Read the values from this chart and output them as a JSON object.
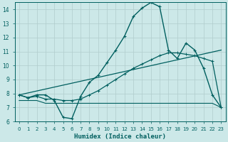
{
  "xlabel": "Humidex (Indice chaleur)",
  "xlim": [
    -0.5,
    23.5
  ],
  "ylim": [
    6,
    14.5
  ],
  "yticks": [
    6,
    7,
    8,
    9,
    10,
    11,
    12,
    13,
    14
  ],
  "xticks": [
    0,
    1,
    2,
    3,
    4,
    5,
    6,
    7,
    8,
    9,
    10,
    11,
    12,
    13,
    14,
    15,
    16,
    17,
    18,
    19,
    20,
    21,
    22,
    23
  ],
  "bg_color": "#cce8e8",
  "line_color": "#005f5f",
  "grid_color": "#b0cccc",
  "line1_x": [
    0,
    1,
    2,
    3,
    4,
    5,
    6,
    7,
    8,
    9,
    10,
    11,
    12,
    13,
    14,
    15,
    16,
    17,
    18,
    19,
    20,
    21,
    22,
    23
  ],
  "line1_y": [
    7.9,
    7.7,
    7.9,
    7.9,
    7.5,
    6.3,
    6.2,
    7.8,
    8.8,
    9.3,
    10.2,
    11.1,
    12.1,
    13.5,
    14.1,
    14.5,
    14.2,
    11.1,
    10.5,
    11.6,
    11.1,
    9.8,
    7.9,
    7.0
  ],
  "line2_x": [
    0,
    23
  ],
  "line2_y": [
    7.9,
    11.1
  ],
  "line3_x": [
    0,
    1,
    2,
    3,
    4,
    5,
    6,
    7,
    8,
    9,
    10,
    11,
    12,
    13,
    14,
    15,
    16,
    17,
    18,
    19,
    20,
    21,
    22,
    23
  ],
  "line3_y": [
    7.9,
    7.7,
    7.8,
    7.6,
    7.6,
    7.5,
    7.5,
    7.6,
    7.9,
    8.2,
    8.6,
    9.0,
    9.4,
    9.8,
    10.1,
    10.4,
    10.7,
    10.9,
    10.9,
    10.8,
    10.7,
    10.5,
    10.3,
    7.0
  ],
  "line4_x": [
    0,
    1,
    2,
    3,
    4,
    5,
    6,
    7,
    8,
    9,
    10,
    11,
    12,
    13,
    14,
    15,
    16,
    17,
    18,
    19,
    20,
    21,
    22,
    23
  ],
  "line4_y": [
    7.5,
    7.5,
    7.5,
    7.3,
    7.3,
    7.3,
    7.3,
    7.3,
    7.3,
    7.3,
    7.3,
    7.3,
    7.3,
    7.3,
    7.3,
    7.3,
    7.3,
    7.3,
    7.3,
    7.3,
    7.3,
    7.3,
    7.3,
    7.0
  ]
}
